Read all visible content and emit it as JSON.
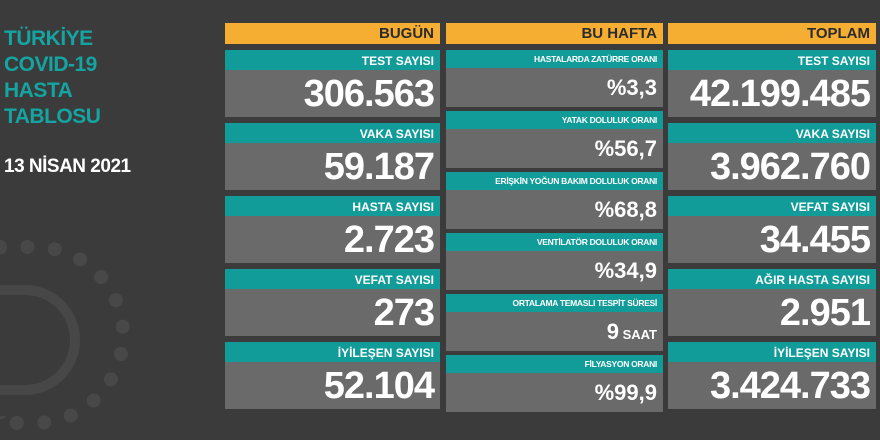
{
  "title": [
    "TÜRKİYE",
    "COVID-19",
    "HASTA",
    "TABLOSU"
  ],
  "date": "13 NİSAN 2021",
  "colors": {
    "background": "#3b3b3b",
    "teal": "#119c99",
    "orange": "#f5ae32",
    "gray": "#6a6a6a",
    "title": "#14a4a1"
  },
  "today": {
    "header": "BUGÜN",
    "items": [
      {
        "label": "TEST SAYISI",
        "value": "306.563"
      },
      {
        "label": "VAKA SAYISI",
        "value": "59.187"
      },
      {
        "label": "HASTA SAYISI",
        "value": "2.723"
      },
      {
        "label": "VEFAT SAYISI",
        "value": "273"
      },
      {
        "label": "İYİLEŞEN SAYISI",
        "value": "52.104"
      }
    ]
  },
  "week": {
    "header": "BU HAFTA",
    "items": [
      {
        "label": "HASTALARDA ZATÜRRE ORANI",
        "value": "%3,3",
        "unit": ""
      },
      {
        "label": "YATAK DOLULUK ORANI",
        "value": "%56,7",
        "unit": ""
      },
      {
        "label": "ERİŞKİN YOĞUN BAKIM DOLULUK ORANI",
        "value": "%68,8",
        "unit": ""
      },
      {
        "label": "VENTİLATÖR DOLULUK ORANI",
        "value": "%34,9",
        "unit": ""
      },
      {
        "label": "ORTALAMA TEMASLI TESPİT SÜRESİ",
        "value": "9",
        "unit": " SAAT"
      },
      {
        "label": "FİLYASYON ORANI",
        "value": "%99,9",
        "unit": ""
      }
    ]
  },
  "total": {
    "header": "TOPLAM",
    "items": [
      {
        "label": "TEST SAYISI",
        "value": "42.199.485"
      },
      {
        "label": "VAKA SAYISI",
        "value": "3.962.760"
      },
      {
        "label": "VEFAT SAYISI",
        "value": "34.455"
      },
      {
        "label": "AĞIR HASTA SAYISI",
        "value": "2.951"
      },
      {
        "label": "İYİLEŞEN SAYISI",
        "value": "3.424.733"
      }
    ]
  }
}
